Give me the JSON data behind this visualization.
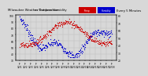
{
  "title_left": "Milwaukee Weather Outdoor Humidity",
  "title_mid": "vs Temperature",
  "title_right": "Every 5 Minutes",
  "bg_color": "#d8d8d8",
  "plot_bg_color": "#d8d8d8",
  "blue_color": "#0000cc",
  "red_color": "#cc0000",
  "legend_blue_label": "Humidity",
  "legend_red_label": "Temp",
  "ylim_left": [
    30,
    100
  ],
  "ylim_right": [
    20,
    80
  ],
  "grid_color": "#bbbbbb",
  "title_fontsize": 2.8,
  "tick_fontsize": 2.2,
  "marker_size": 0.8,
  "n_points": 288,
  "seed": 7
}
